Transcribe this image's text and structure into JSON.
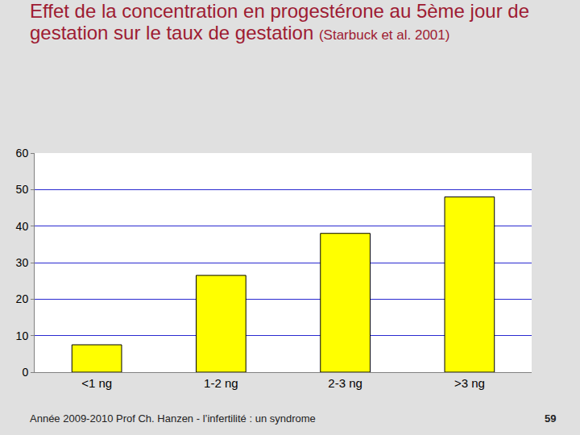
{
  "chart_data": {
    "type": "bar",
    "title": "Effet de la concentration en progestérone au 5ème jour de gestation sur le taux de gestation",
    "subtitle": "(Starbuck et al. 2001)",
    "categories": [
      "<1 ng",
      "1-2 ng",
      "2-3 ng",
      ">3 ng"
    ],
    "values": [
      7.5,
      26.5,
      38,
      48
    ],
    "color": "#ffff00",
    "ylim": [
      0,
      60
    ],
    "yticks": [
      0,
      10,
      20,
      30,
      40,
      50,
      60
    ],
    "grid": true,
    "annotations": [
      "Année 2009-2010 Prof Ch. Hanzen - l’infertilité : un syndrome",
      "59"
    ]
  }
}
